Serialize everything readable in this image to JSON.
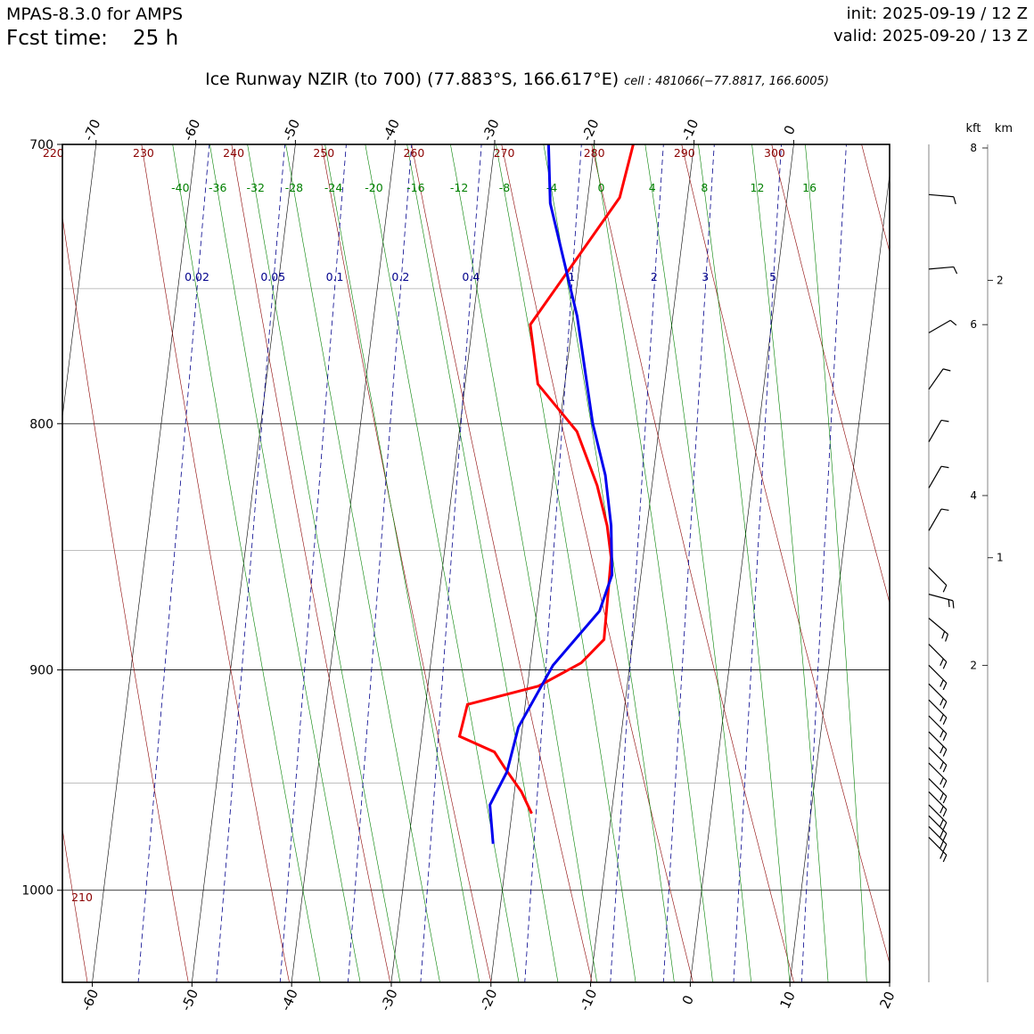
{
  "header": {
    "model": "MPAS-8.3.0 for AMPS",
    "fcst_label": "Fcst time:",
    "fcst_value": "25 h",
    "init": "init: 2025-09-19 / 12 Z",
    "valid": "valid: 2025-09-20 / 13 Z"
  },
  "title": {
    "main": "Ice Runway NZIR (to 700)  (77.883°S, 166.617°E)",
    "cell": "cell : 481066(−77.8817, 166.6005)"
  },
  "colors": {
    "temperature": "#ff0000",
    "dewpoint": "#0000ee",
    "isotherm": "#000000",
    "dry_adiabat": "#8b0000",
    "moist_adiabat": "#008000",
    "mixing_ratio": "#00008b",
    "isobar": "#000000",
    "isobar_minor": "#aaaaaa"
  },
  "chart_data": {
    "type": "line",
    "title": "Ice Runway NZIR (to 700)",
    "ylim": [
      1045,
      700
    ],
    "xlim": [
      -63,
      20
    ],
    "y_log_scale": true,
    "skew_deg_per_log_unit": 25.9,
    "pressure_ticks": [
      700,
      800,
      900,
      1000
    ],
    "minor_isobars": [
      750,
      850,
      950
    ],
    "bottom_temperature_ticks": [
      -60,
      -50,
      -40,
      -30,
      -20,
      -10,
      0,
      10,
      20
    ],
    "top_temperature_ticks": [
      -70,
      -60,
      -50,
      -40,
      -30,
      -20,
      -10,
      0
    ],
    "isotherms": [
      -110,
      -100,
      -90,
      -80,
      -70,
      -60,
      -50,
      -40,
      -30,
      -20,
      -10,
      0,
      10,
      20,
      30
    ],
    "dry_adiabats_K": [
      210,
      220,
      230,
      240,
      250,
      260,
      270,
      280,
      290,
      300,
      310
    ],
    "dry_adiabat_labels_top": [
      "220",
      "230",
      "240",
      "250",
      "260",
      "270",
      "280",
      "290",
      "300"
    ],
    "dry_adiabat_label_bottom": "210",
    "moist_adiabats_C": [
      -40,
      -36,
      -32,
      -28,
      -24,
      -20,
      -16,
      -12,
      -8,
      -4,
      0,
      4,
      8,
      12,
      16
    ],
    "moist_adiabat_labels": [
      "-40",
      "-36",
      "-32",
      "-28",
      "-24",
      "-20",
      "-16",
      "-12",
      "-8",
      "-4",
      "0",
      "4",
      "8",
      "12",
      "16"
    ],
    "mixing_ratios": [
      0.02,
      0.05,
      0.1,
      0.2,
      0.4,
      1,
      2,
      3,
      5,
      8
    ],
    "mixing_ratio_labels": [
      "0.02",
      "0.05",
      "0.1",
      "0.2",
      "0.4",
      "1",
      "2",
      "3",
      "5"
    ],
    "series": [
      {
        "name": "temperature",
        "p": [
          700,
          718,
          742,
          763,
          785,
          803,
          824,
          840,
          853,
          887,
          897,
          907,
          915,
          929,
          936,
          943,
          954,
          964
        ],
        "t": [
          -16.1,
          -16.8,
          -20.8,
          -24.2,
          -22.7,
          -18.2,
          -15.5,
          -14.0,
          -13.2,
          -12.9,
          -14.9,
          -18.9,
          -25.8,
          -26.2,
          -22.5,
          -21.3,
          -19.3,
          -18.0
        ]
      },
      {
        "name": "dewpoint",
        "p": [
          700,
          720,
          760,
          800,
          820,
          840,
          860,
          875,
          898,
          925,
          945,
          960,
          978
        ],
        "t": [
          -24.6,
          -23.7,
          -19.6,
          -16.7,
          -14.8,
          -13.6,
          -12.9,
          -13.7,
          -17.7,
          -20.4,
          -21.0,
          -22.3,
          -21.5
        ]
      }
    ],
    "right_axis": {
      "kft_label": "kft",
      "km_label": "km",
      "kft_ticks": [
        {
          "label": "8",
          "p": 700
        },
        {
          "label": "6",
          "p": 763
        },
        {
          "label": "4",
          "p": 828
        },
        {
          "label": "2",
          "p": 898
        }
      ],
      "km_ticks": [
        {
          "label": "2",
          "p": 747
        },
        {
          "label": "1",
          "p": 853
        }
      ]
    },
    "wind_barbs": [
      {
        "p": 717,
        "dir": 275,
        "kt": 10
      },
      {
        "p": 743,
        "dir": 265,
        "kt": 10
      },
      {
        "p": 766,
        "dir": 240,
        "kt": 10
      },
      {
        "p": 787,
        "dir": 215,
        "kt": 10
      },
      {
        "p": 807,
        "dir": 210,
        "kt": 10
      },
      {
        "p": 825,
        "dir": 210,
        "kt": 10
      },
      {
        "p": 842,
        "dir": 210,
        "kt": 10
      },
      {
        "p": 857,
        "dir": 315,
        "kt": 10
      },
      {
        "p": 868,
        "dir": 285,
        "kt": 20
      },
      {
        "p": 878,
        "dir": 310,
        "kt": 20
      },
      {
        "p": 889,
        "dir": 315,
        "kt": 20
      },
      {
        "p": 898,
        "dir": 315,
        "kt": 20
      },
      {
        "p": 906,
        "dir": 315,
        "kt": 20
      },
      {
        "p": 913,
        "dir": 315,
        "kt": 20
      },
      {
        "p": 920,
        "dir": 315,
        "kt": 20
      },
      {
        "p": 927,
        "dir": 315,
        "kt": 20
      },
      {
        "p": 934,
        "dir": 315,
        "kt": 20
      },
      {
        "p": 941,
        "dir": 315,
        "kt": 20
      },
      {
        "p": 948,
        "dir": 315,
        "kt": 20
      },
      {
        "p": 954,
        "dir": 315,
        "kt": 20
      },
      {
        "p": 960,
        "dir": 315,
        "kt": 20
      },
      {
        "p": 965,
        "dir": 315,
        "kt": 20
      },
      {
        "p": 970,
        "dir": 315,
        "kt": 20
      },
      {
        "p": 975,
        "dir": 315,
        "kt": 20
      }
    ]
  }
}
